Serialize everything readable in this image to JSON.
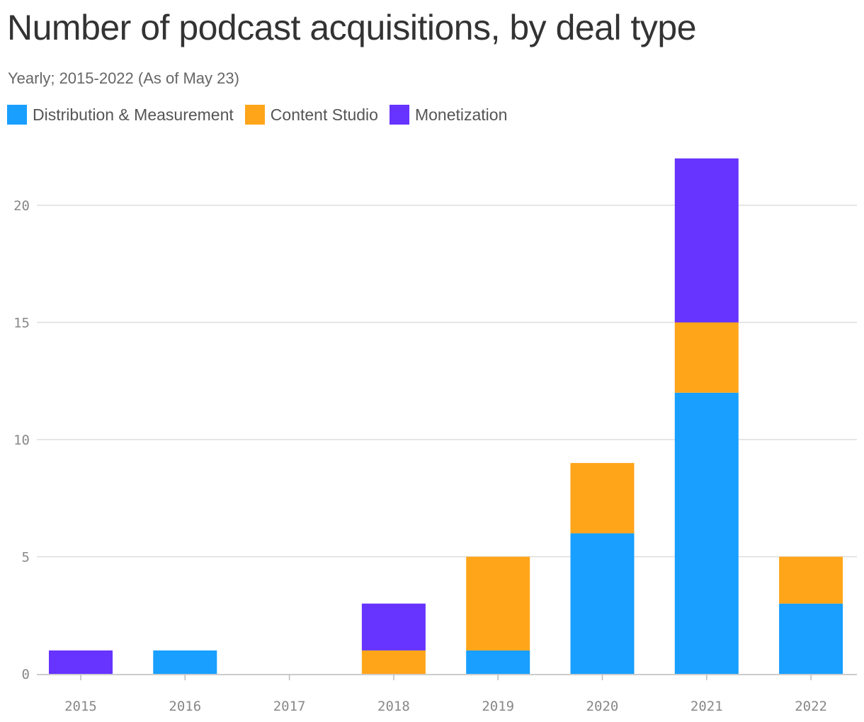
{
  "chart_data": {
    "type": "bar",
    "stacked": true,
    "title": "Number of podcast acquisitions, by deal type",
    "subtitle": "Yearly; 2015-2022 (As of May 23)",
    "categories": [
      "2015",
      "2016",
      "2017",
      "2018",
      "2019",
      "2020",
      "2021",
      "2022"
    ],
    "series": [
      {
        "name": "Distribution & Measurement",
        "color": "#189FFF",
        "values": [
          0,
          1,
          0,
          0,
          1,
          6,
          12,
          3
        ]
      },
      {
        "name": "Content Studio",
        "color": "#FFA51A",
        "values": [
          0,
          0,
          0,
          1,
          4,
          3,
          3,
          2
        ]
      },
      {
        "name": "Monetization",
        "color": "#6633FF",
        "values": [
          1,
          0,
          0,
          2,
          0,
          0,
          7,
          0
        ]
      }
    ],
    "y_ticks": [
      "0",
      "5",
      "10",
      "15",
      "20"
    ],
    "ylim": [
      0,
      22
    ],
    "grid": true,
    "legend_position": "top-left"
  }
}
